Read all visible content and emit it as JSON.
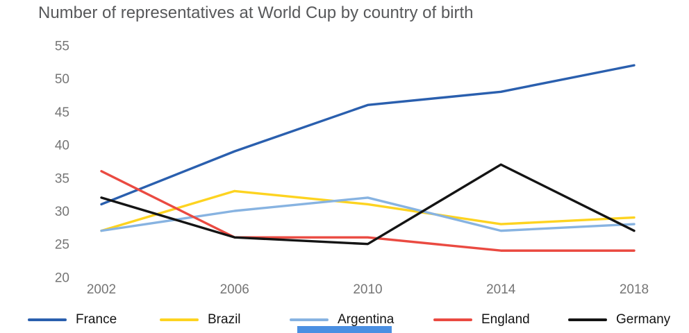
{
  "chart_data": {
    "type": "line",
    "title": "Number of representatives at World Cup by country of birth",
    "x": [
      2002,
      2006,
      2010,
      2014,
      2018
    ],
    "series": [
      {
        "name": "France",
        "color": "#2a5fae",
        "values": [
          31,
          39,
          46,
          48,
          52
        ]
      },
      {
        "name": "Brazil",
        "color": "#fdd320",
        "values": [
          27,
          33,
          31,
          28,
          29
        ]
      },
      {
        "name": "Argentina",
        "color": "#87b3e1",
        "values": [
          27,
          30,
          32,
          27,
          28
        ]
      },
      {
        "name": "England",
        "color": "#ea4a41",
        "values": [
          36,
          26,
          26,
          24,
          24
        ]
      },
      {
        "name": "Germany",
        "color": "#141414",
        "values": [
          32,
          26,
          25,
          37,
          27
        ]
      }
    ],
    "ylim": [
      20,
      55
    ],
    "ytick_step": 5,
    "yticks": [
      20,
      25,
      30,
      35,
      40,
      45,
      50,
      55
    ],
    "grid": false,
    "legend_position": "bottom"
  },
  "ui": {
    "bottom_bar_color": "#4a8fe2"
  }
}
